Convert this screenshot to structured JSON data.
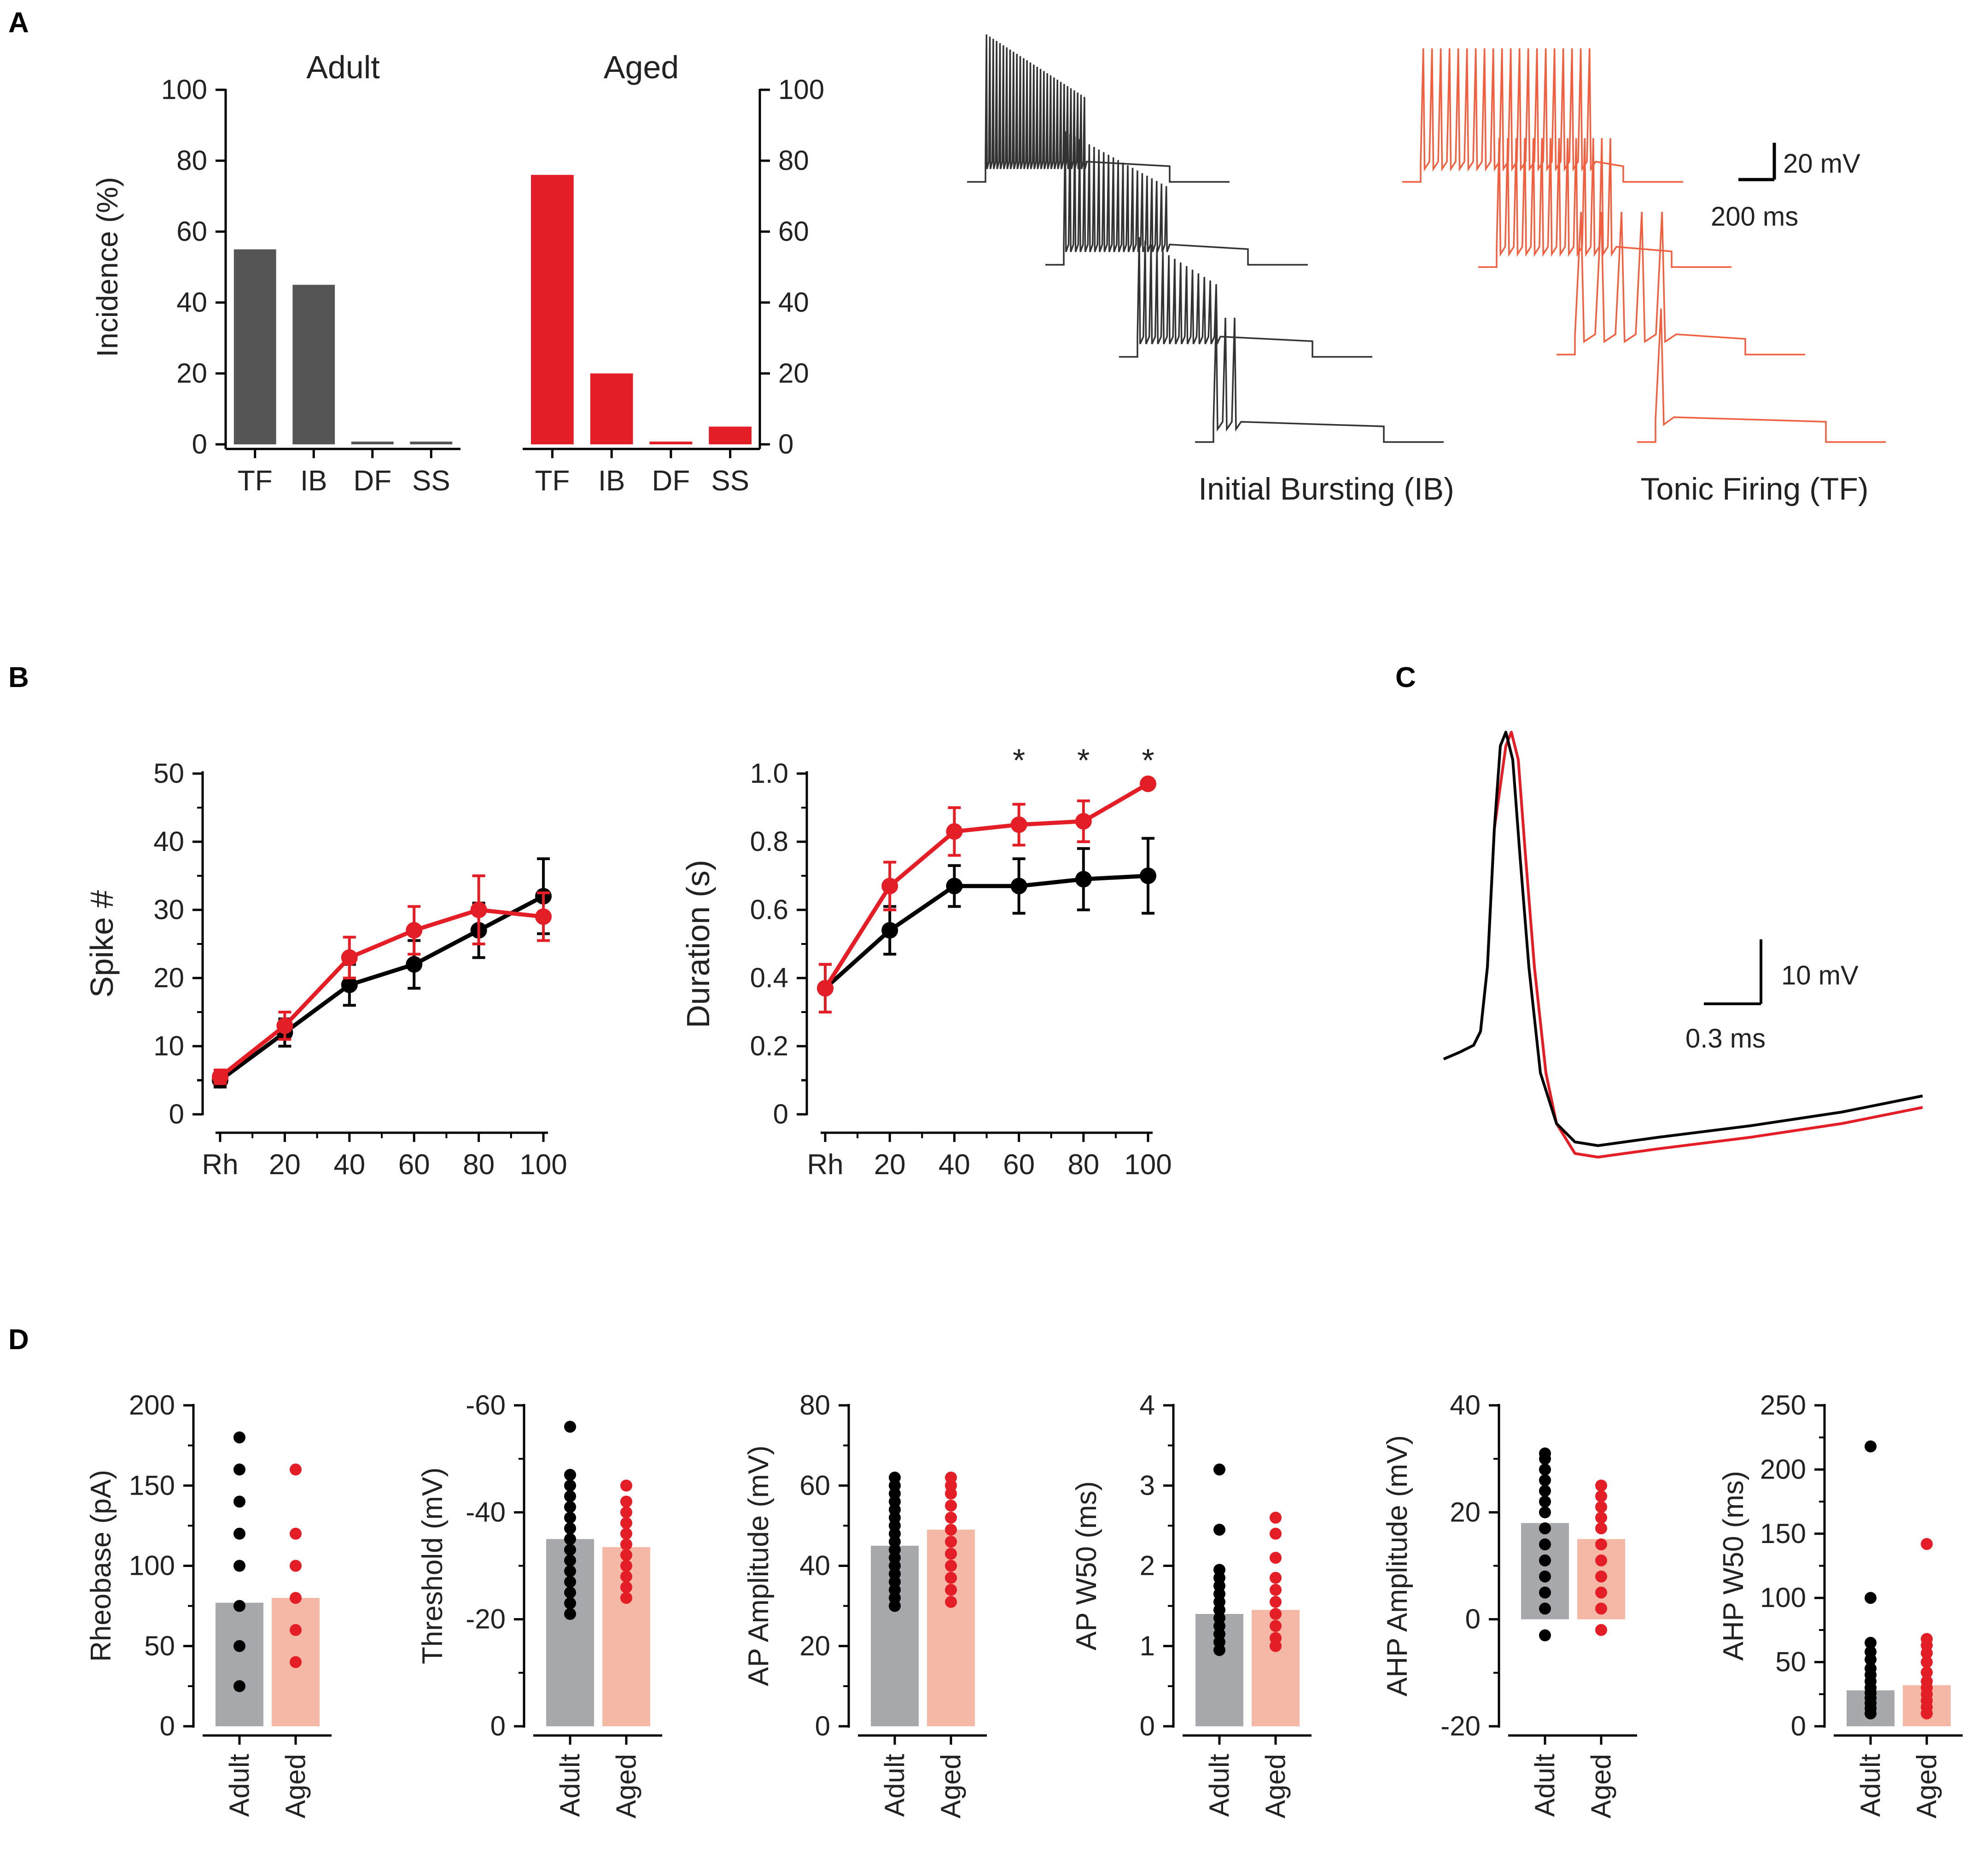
{
  "colors": {
    "adult": "#555555",
    "aged": "#e41e26",
    "adult_trace": "#333333",
    "aged_trace": "#f06040",
    "adult_dot": "#000000",
    "aged_dot": "#e41e26",
    "adult_bar_light": "#a6a8ab",
    "aged_bar_light": "#f5b8a6",
    "axis": "#000000"
  },
  "panels": {
    "A": "A",
    "B": "B",
    "C": "C",
    "D": "D"
  },
  "traces_A": {
    "ib_label": "Initial Bursting (IB)",
    "tf_label": "Tonic Firing (TF)",
    "scale_v": "20 mV",
    "scale_t": "200 ms"
  },
  "trace_C": {
    "scale_v": "10 mV",
    "scale_t": "0.3 ms"
  },
  "chart_data": [
    {
      "id": "A_adult",
      "type": "bar",
      "title": "Adult",
      "ylabel": "Incidence (%)",
      "categories": [
        "TF",
        "IB",
        "DF",
        "SS"
      ],
      "values": [
        55,
        45,
        0,
        0
      ],
      "ylim": [
        0,
        100
      ],
      "yticks": [
        0,
        20,
        40,
        60,
        80,
        100
      ],
      "color": "#555555"
    },
    {
      "id": "A_aged",
      "type": "bar",
      "title": "Aged",
      "categories": [
        "TF",
        "IB",
        "DF",
        "SS"
      ],
      "values": [
        76,
        20,
        0,
        5
      ],
      "ylim": [
        0,
        100
      ],
      "yticks": [
        0,
        20,
        40,
        60,
        80,
        100
      ],
      "color": "#e41e26"
    },
    {
      "id": "B_spikes",
      "type": "line",
      "ylabel": "Spike #",
      "x": [
        "Rh",
        "20",
        "40",
        "60",
        "80",
        "100"
      ],
      "ylim": [
        0,
        50
      ],
      "yticks": [
        0,
        10,
        20,
        30,
        40,
        50
      ],
      "series": [
        {
          "name": "Adult",
          "values": [
            5,
            12,
            19,
            22,
            27,
            32
          ],
          "err": [
            1,
            2,
            3,
            3.5,
            4,
            5.5
          ]
        },
        {
          "name": "Aged",
          "values": [
            5.5,
            13,
            23,
            27,
            30,
            29
          ],
          "err": [
            1,
            2,
            3,
            3.5,
            5,
            3.5
          ]
        }
      ]
    },
    {
      "id": "B_duration",
      "type": "line",
      "ylabel": "Duration (s)",
      "x": [
        "Rh",
        "20",
        "40",
        "60",
        "80",
        "100"
      ],
      "ylim": [
        0,
        1.0
      ],
      "yticks": [
        "0",
        "0.2",
        "0.4",
        "0.6",
        "0.8",
        "1.0"
      ],
      "annotations": [
        {
          "x": "60",
          "text": "*"
        },
        {
          "x": "80",
          "text": "*"
        },
        {
          "x": "100",
          "text": "*"
        }
      ],
      "series": [
        {
          "name": "Adult",
          "values": [
            0.37,
            0.54,
            0.67,
            0.67,
            0.69,
            0.7
          ],
          "err": [
            0.07,
            0.07,
            0.06,
            0.08,
            0.09,
            0.11
          ]
        },
        {
          "name": "Aged",
          "values": [
            0.37,
            0.67,
            0.83,
            0.85,
            0.86,
            0.97
          ],
          "err": [
            0.07,
            0.07,
            0.07,
            0.06,
            0.06,
            0
          ]
        }
      ]
    },
    {
      "id": "D_rheobase",
      "type": "bar",
      "ylabel": "Rheobase (pA)",
      "categories": [
        "Adult",
        "Aged"
      ],
      "values": [
        77,
        80
      ],
      "ylim": [
        0,
        200
      ],
      "yticks": [
        "0",
        "50",
        "100",
        "150",
        "200"
      ],
      "points": {
        "Adult": [
          25,
          50,
          75,
          100,
          120,
          140,
          160,
          180
        ],
        "Aged": [
          40,
          60,
          80,
          100,
          120,
          160
        ]
      }
    },
    {
      "id": "D_threshold",
      "type": "bar",
      "ylabel": "Threshold (mV)",
      "categories": [
        "Adult",
        "Aged"
      ],
      "values": [
        -35,
        -33.5
      ],
      "ylim": [
        0,
        -60
      ],
      "yticks": [
        "0",
        "-20",
        "-40",
        "-60"
      ],
      "points": {
        "Adult": [
          -21,
          -23,
          -25,
          -27,
          -29,
          -31,
          -33,
          -35,
          -37,
          -39,
          -41,
          -43,
          -45,
          -47,
          -56
        ],
        "Aged": [
          -24,
          -26,
          -28,
          -30,
          -32,
          -34,
          -36,
          -38,
          -40,
          -42,
          -45
        ]
      }
    },
    {
      "id": "D_ap_amp",
      "type": "bar",
      "ylabel": "AP Amplitude (mV)",
      "categories": [
        "Adult",
        "Aged"
      ],
      "values": [
        45,
        49
      ],
      "ylim": [
        0,
        80
      ],
      "yticks": [
        "0",
        "20",
        "40",
        "60",
        "80"
      ],
      "points": {
        "Adult": [
          30,
          32,
          34,
          36,
          38,
          40,
          42,
          44,
          46,
          48,
          50,
          52,
          54,
          56,
          58,
          60,
          62
        ],
        "Aged": [
          31,
          34,
          37,
          40,
          43,
          46,
          49,
          52,
          55,
          58,
          60,
          62
        ]
      }
    },
    {
      "id": "D_ap_w50",
      "type": "bar",
      "ylabel": "AP W50 (ms)",
      "categories": [
        "Adult",
        "Aged"
      ],
      "values": [
        1.4,
        1.45
      ],
      "ylim": [
        0,
        4
      ],
      "yticks": [
        "0",
        "1",
        "2",
        "3",
        "4"
      ],
      "points": {
        "Adult": [
          0.95,
          1.05,
          1.15,
          1.25,
          1.35,
          1.45,
          1.55,
          1.65,
          1.75,
          1.85,
          1.95,
          2.45,
          3.2
        ],
        "Aged": [
          1.0,
          1.1,
          1.25,
          1.4,
          1.55,
          1.7,
          1.85,
          2.1,
          2.4,
          2.6
        ]
      }
    },
    {
      "id": "D_ahp_amp",
      "type": "bar",
      "ylabel": "AHP Amplitude (mV)",
      "categories": [
        "Adult",
        "Aged"
      ],
      "values": [
        18,
        15
      ],
      "ylim": [
        -20,
        40
      ],
      "yticks": [
        "-20",
        "0",
        "20",
        "40"
      ],
      "points": {
        "Adult": [
          -3,
          2,
          5,
          8,
          11,
          14,
          17,
          20,
          22,
          24,
          26,
          28,
          30,
          31
        ],
        "Aged": [
          -2,
          2,
          5,
          8,
          11,
          14,
          17,
          19,
          21,
          23,
          25
        ]
      }
    },
    {
      "id": "D_ahp_w50",
      "type": "bar",
      "ylabel": "AHP W50 (ms)",
      "categories": [
        "Adult",
        "Aged"
      ],
      "values": [
        28,
        32
      ],
      "ylim": [
        0,
        250
      ],
      "yticks": [
        "0",
        "50",
        "100",
        "150",
        "200",
        "250"
      ],
      "points": {
        "Adult": [
          10,
          14,
          18,
          22,
          26,
          30,
          35,
          40,
          45,
          52,
          58,
          65,
          100,
          218
        ],
        "Aged": [
          10,
          15,
          20,
          25,
          30,
          35,
          42,
          50,
          57,
          63,
          68,
          142
        ]
      }
    }
  ]
}
